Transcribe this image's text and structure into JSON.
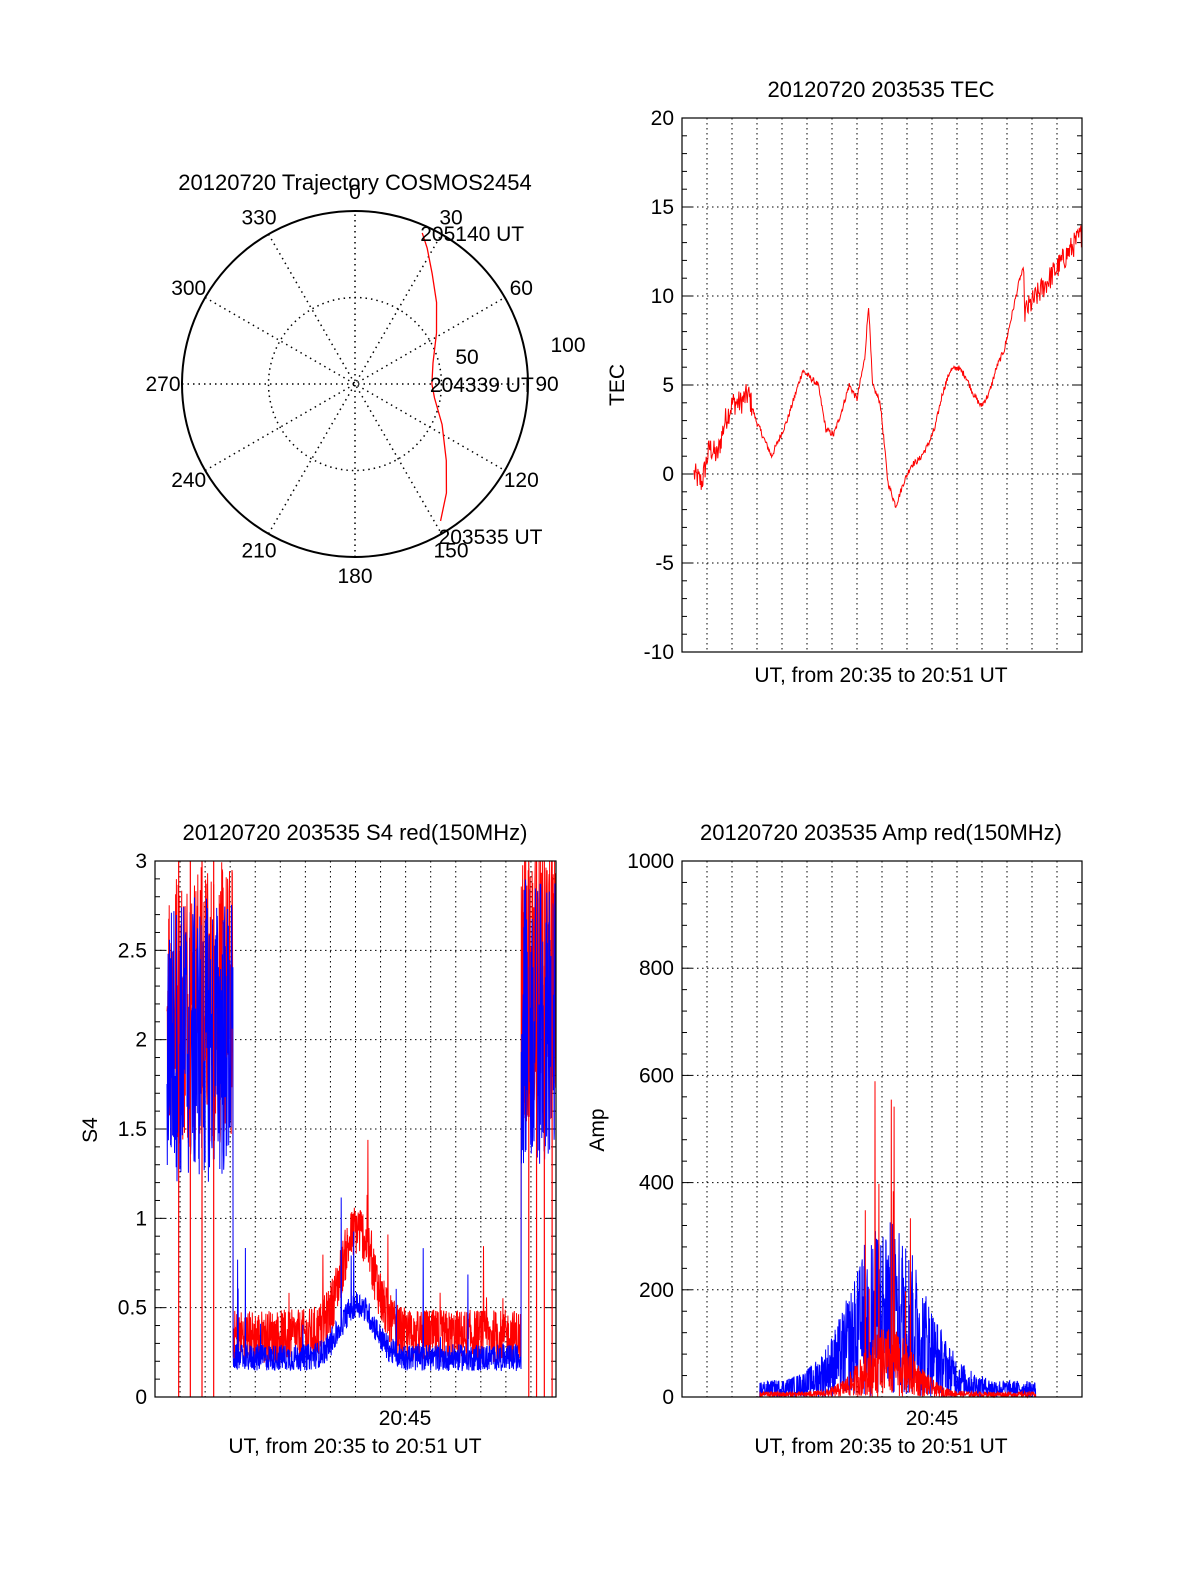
{
  "colors": {
    "red": "#ff0000",
    "blue": "#0000ff",
    "axis": "#000000",
    "grid": "#000000"
  },
  "chart_data": [
    {
      "id": "trajectory",
      "type": "polar",
      "title": "20120720 Trajectory COSMOS2454",
      "angle_labels": [
        "0",
        "30",
        "60",
        "90",
        "120",
        "150",
        "180",
        "210",
        "240",
        "270",
        "300",
        "330"
      ],
      "radius_labels": [
        "50",
        "100"
      ],
      "series": [
        {
          "color": "red",
          "points": [
            {
              "az": 148,
              "el": 6
            },
            {
              "az": 140,
              "el": 16
            },
            {
              "az": 130,
              "el": 28
            },
            {
              "az": 115,
              "el": 40
            },
            {
              "az": 100,
              "el": 48
            },
            {
              "az": 90,
              "el": 50
            },
            {
              "az": 75,
              "el": 48
            },
            {
              "az": 58,
              "el": 40
            },
            {
              "az": 45,
              "el": 30
            },
            {
              "az": 35,
              "el": 20
            },
            {
              "az": 28,
              "el": 10
            },
            {
              "az": 24,
              "el": 4
            }
          ]
        }
      ],
      "annotations": [
        {
          "text": "205140 UT",
          "az": 24,
          "el": 4
        },
        {
          "text": "204339 UT",
          "az": 90,
          "el": 50
        },
        {
          "text": "203535 UT",
          "az": 148,
          "el": 6
        }
      ]
    },
    {
      "id": "tec",
      "type": "line",
      "title": "20120720 203535 TEC",
      "xlabel": "UT, from 20:35 to 20:51 UT",
      "ylabel": "TEC",
      "ylim": [
        -10,
        20
      ],
      "yticks": [
        "-10",
        "-5",
        "0",
        "5",
        "10",
        "15",
        "20"
      ],
      "series": [
        {
          "color": "red",
          "x": [
            0,
            0.02,
            0.04,
            0.06,
            0.08,
            0.1,
            0.12,
            0.14,
            0.16,
            0.2,
            0.24,
            0.28,
            0.32,
            0.34,
            0.36,
            0.38,
            0.4,
            0.42,
            0.44,
            0.45,
            0.46,
            0.48,
            0.5,
            0.52,
            0.54,
            0.56,
            0.58,
            0.6,
            0.62,
            0.64,
            0.66,
            0.68,
            0.7,
            0.72,
            0.74,
            0.76,
            0.78,
            0.8,
            0.82,
            0.84,
            0.86,
            0.88,
            0.9,
            0.92,
            0.94,
            0.96,
            0.98,
            1.0
          ],
          "y": [
            0,
            -0.5,
            1.5,
            1,
            3,
            4,
            4,
            4.5,
            3,
            1,
            3,
            5.8,
            5,
            2.5,
            2.2,
            3.5,
            5,
            4.2,
            6.5,
            9.5,
            5,
            4,
            -0.5,
            -1.8,
            -0.5,
            0.5,
            0.8,
            1.5,
            2.5,
            4.5,
            5.8,
            6,
            5.5,
            4.5,
            3.8,
            4.5,
            6,
            7,
            9,
            11,
            12,
            13.5,
            13.5,
            13.5,
            13.5,
            13.5,
            13.5,
            13.5
          ]
        }
      ]
    },
    {
      "id": "s4",
      "type": "line",
      "title": "20120720 203535 S4 red(150MHz)",
      "xlabel": "UT, from 20:35 to 20:51 UT",
      "ylabel": "S4",
      "ylim": [
        0,
        3
      ],
      "yticks": [
        "0",
        "0.5",
        "1",
        "1.5",
        "2",
        "2.5",
        "3"
      ],
      "xtick_label": "20:45",
      "series": [
        {
          "name": "",
          "color": "red"
        },
        {
          "name": "",
          "color": "blue"
        }
      ]
    },
    {
      "id": "amp",
      "type": "line",
      "title": "20120720 203535 Amp red(150MHz)",
      "xlabel": "UT, from 20:35 to 20:51 UT",
      "ylabel": "Amp",
      "ylim": [
        0,
        1000
      ],
      "yticks": [
        "0",
        "200",
        "400",
        "600",
        "800",
        "1000"
      ],
      "xtick_label": "20:45",
      "series": [
        {
          "name": "",
          "color": "blue"
        },
        {
          "name": "",
          "color": "red"
        }
      ]
    }
  ]
}
